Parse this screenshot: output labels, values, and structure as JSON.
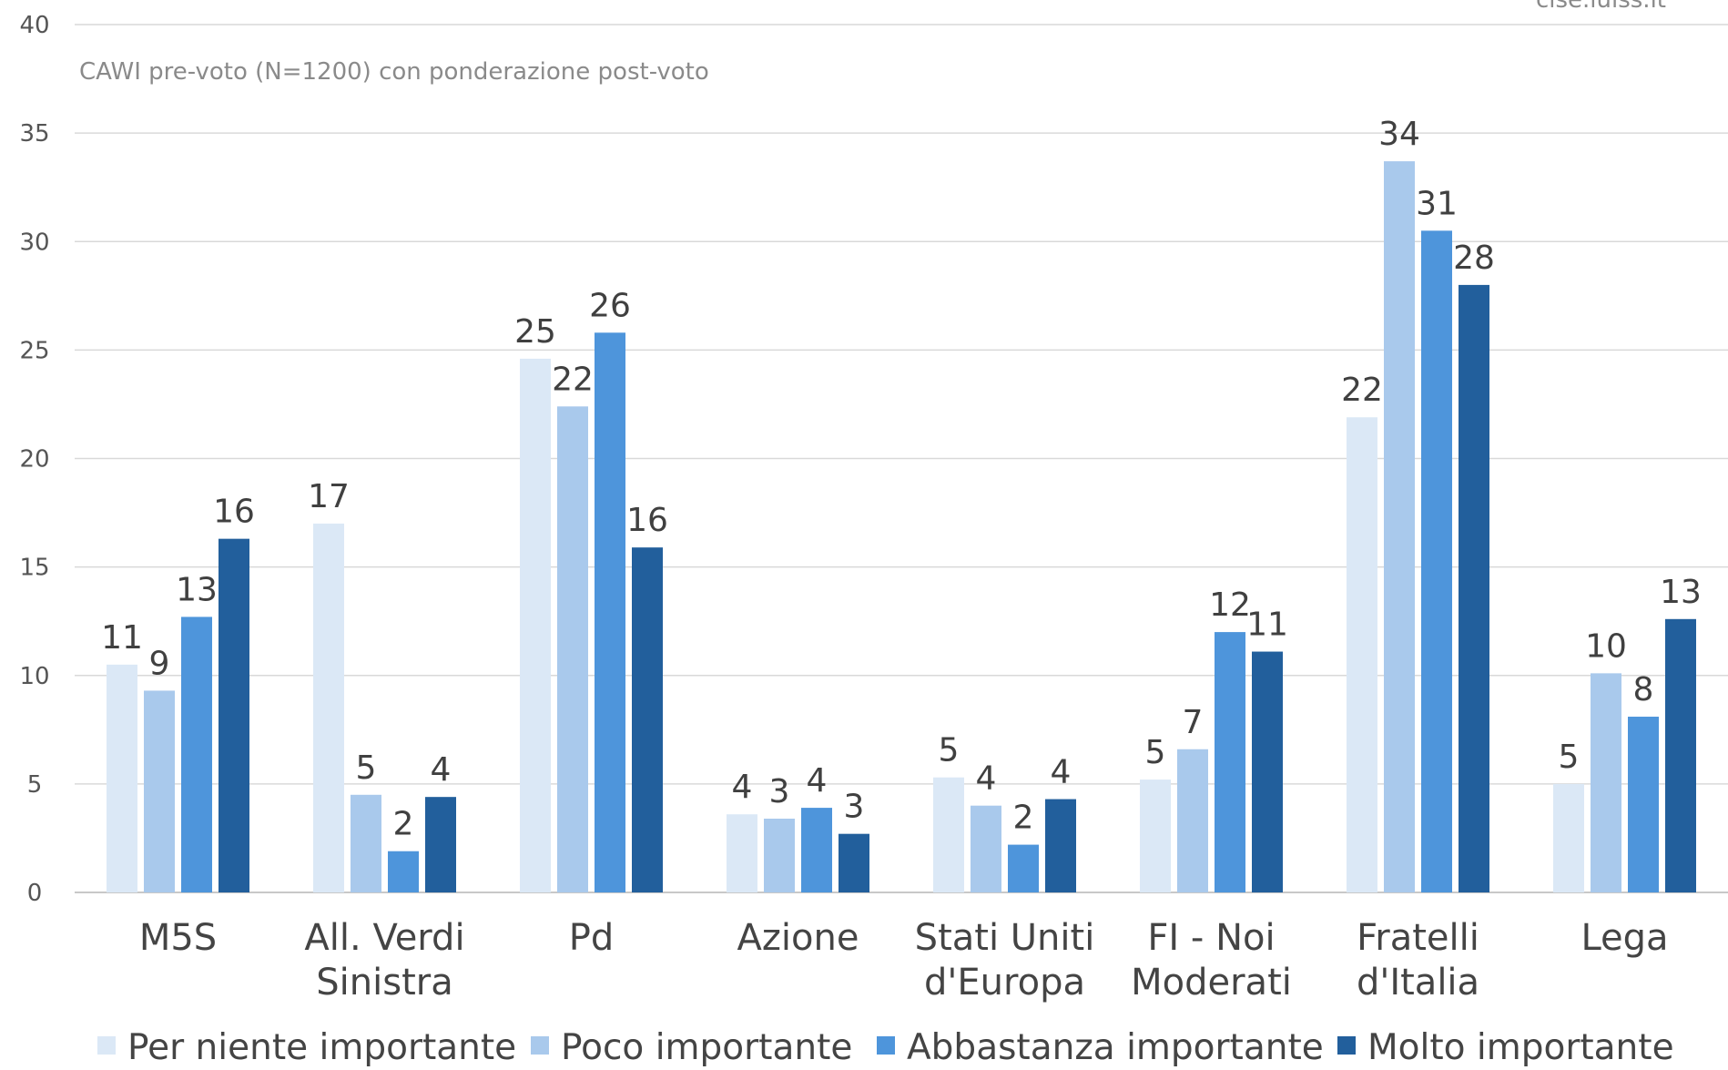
{
  "source": "cise.luiss.it",
  "chart_data": {
    "type": "bar",
    "title": "",
    "subtitle": "CAWI pre-voto (N=1200) con ponderazione post-voto",
    "xlabel": "",
    "ylabel": "",
    "ylim": [
      0,
      40
    ],
    "yticks": [
      0,
      5,
      10,
      15,
      20,
      25,
      30,
      35,
      40
    ],
    "grid": true,
    "legend_position": "bottom",
    "categories": [
      [
        "M5S"
      ],
      [
        "All. Verdi",
        "Sinistra"
      ],
      [
        "Pd"
      ],
      [
        "Azione"
      ],
      [
        "Stati Uniti",
        "d'Europa"
      ],
      [
        "FI - Noi",
        "Moderati"
      ],
      [
        "Fratelli",
        "d'Italia"
      ],
      [
        "Lega"
      ]
    ],
    "series": [
      {
        "name": "Per niente importante",
        "color": "#dbe8f6",
        "values": [
          10.5,
          17,
          24.6,
          3.6,
          5.3,
          5.2,
          21.9,
          5.0
        ],
        "labels": [
          "11",
          "17",
          "25",
          "4",
          "5",
          "5",
          "22",
          "5"
        ]
      },
      {
        "name": "Poco importante",
        "color": "#a9c9ec",
        "values": [
          9.3,
          4.5,
          22.4,
          3.4,
          4.0,
          6.6,
          33.7,
          10.1
        ],
        "labels": [
          "9",
          "5",
          "22",
          "3",
          "4",
          "7",
          "34",
          "10"
        ]
      },
      {
        "name": "Abbastanza importante",
        "color": "#4e95db",
        "values": [
          12.7,
          1.9,
          25.8,
          3.9,
          2.2,
          12.0,
          30.5,
          8.1
        ],
        "labels": [
          "13",
          "2",
          "26",
          "4",
          "2",
          "12",
          "31",
          "8"
        ]
      },
      {
        "name": "Molto importante",
        "color": "#225f9c",
        "values": [
          16.3,
          4.4,
          15.9,
          2.7,
          4.3,
          11.1,
          28.0,
          12.6
        ],
        "labels": [
          "16",
          "4",
          "16",
          "3",
          "4",
          "11",
          "28",
          "13"
        ]
      }
    ]
  }
}
